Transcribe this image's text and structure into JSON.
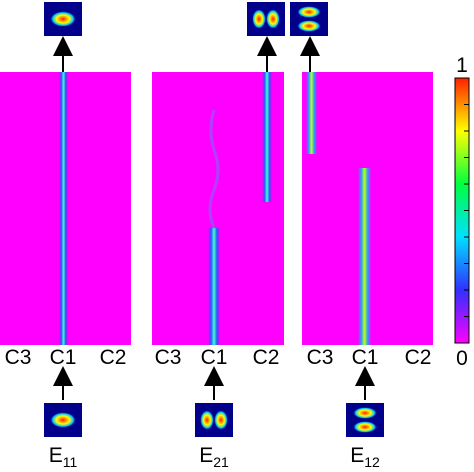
{
  "panels": [
    {
      "x_labels": [
        "C3",
        "C1",
        "C2"
      ],
      "mode": {
        "base": "E",
        "sub": "11"
      }
    },
    {
      "x_labels": [
        "C3",
        "C1",
        "C2"
      ],
      "mode": {
        "base": "E",
        "sub": "21"
      }
    },
    {
      "x_labels": [
        "C3",
        "C1",
        "C2"
      ],
      "mode": {
        "base": "E",
        "sub": "12"
      }
    }
  ],
  "colorbar": {
    "clim": [
      0,
      1
    ],
    "ticks": [
      0,
      1
    ]
  }
}
